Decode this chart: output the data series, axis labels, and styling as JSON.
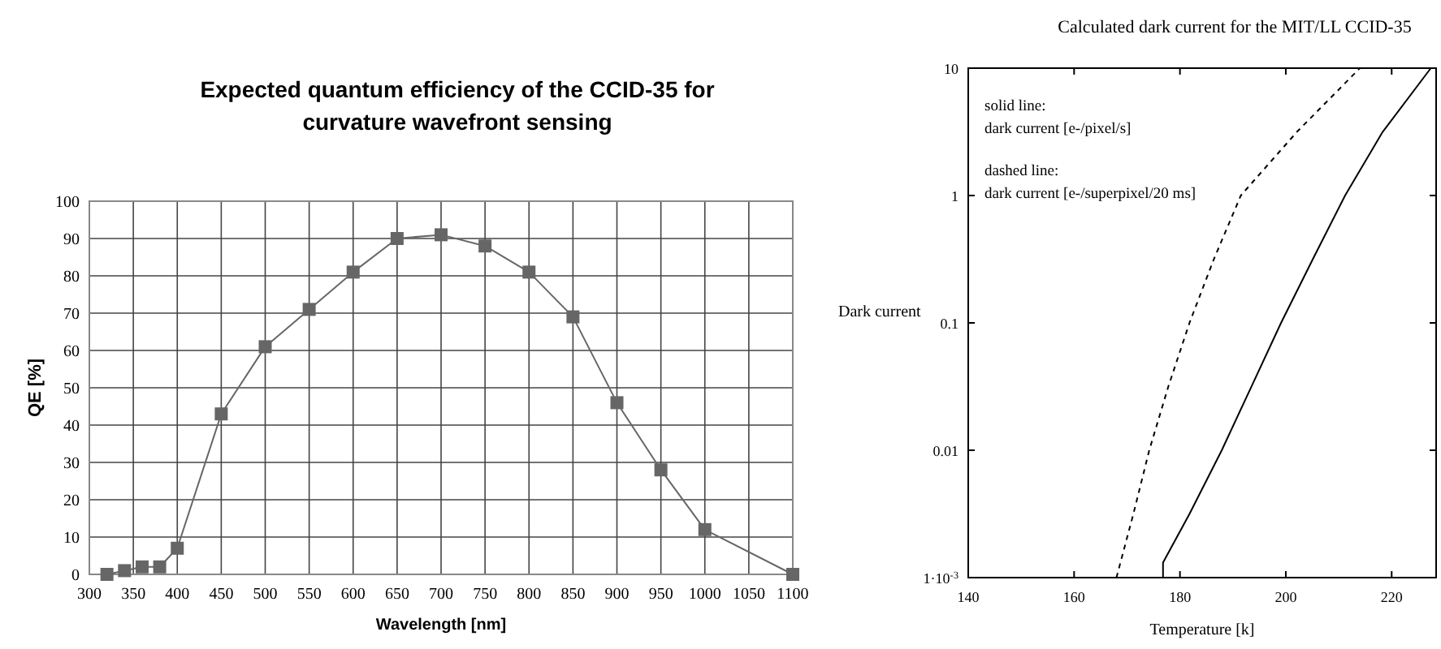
{
  "chart_data": [
    {
      "type": "line",
      "title": "Expected quantum efficiency of the CCID-35 for curvature wavefront sensing",
      "xlabel": "Wavelength [nm]",
      "ylabel": "QE [%]",
      "x": [
        320,
        340,
        360,
        380,
        400,
        450,
        500,
        550,
        600,
        650,
        700,
        750,
        800,
        850,
        900,
        950,
        1000,
        1100
      ],
      "series": [
        {
          "color": "#666666",
          "values": [
            0,
            1,
            2,
            2,
            7,
            43,
            61,
            71,
            81,
            90,
            91,
            88,
            81,
            69,
            46,
            28,
            12,
            0
          ]
        }
      ],
      "xlim": [
        300,
        1100
      ],
      "xticks": [
        300,
        350,
        400,
        450,
        500,
        550,
        600,
        650,
        700,
        750,
        800,
        850,
        900,
        950,
        1000,
        1050,
        1100
      ],
      "ylim": [
        0,
        100
      ],
      "yticks": [
        0,
        10,
        20,
        30,
        40,
        50,
        60,
        70,
        80,
        90,
        100
      ],
      "grid": true,
      "marker": "square"
    },
    {
      "type": "line",
      "title": "Calculated dark current for the MIT/LL CCID-35",
      "xlabel": "Temperature [k]",
      "ylabel": "Dark current",
      "series": [
        {
          "color": "#000000",
          "line_style": "solid",
          "x": [
            176.8,
            176.8,
            181.8,
            187.9,
            193.5,
            199.1,
            205.1,
            211.2,
            218.3,
            227.4
          ],
          "values": [
            0.001,
            0.00131,
            0.00316,
            0.01,
            0.0316,
            0.1,
            0.316,
            1,
            3.16,
            10
          ]
        },
        {
          "color": "#000000",
          "line_style": "dashed",
          "x": [
            168.0,
            171.2,
            174.2,
            177.8,
            181.8,
            186.4,
            191.5,
            202.1,
            214.0
          ],
          "values": [
            0.001,
            0.00316,
            0.01,
            0.0316,
            0.1,
            0.316,
            1,
            3.16,
            10
          ]
        }
      ],
      "xlim": [
        140,
        228.4
      ],
      "xticks": [
        140,
        160,
        180,
        200,
        220
      ],
      "ylim": [
        0.001,
        10
      ],
      "yticks": [
        {
          "value": 0.001,
          "label": "1·10$^{-3}$"
        },
        0.01,
        0.1,
        1,
        10
      ],
      "log": "y",
      "grid": false,
      "annotations": [
        "solid line:",
        "dark current [e-/pixel/s]",
        "dashed line:",
        "dark current  [e-/superpixel/20 ms]"
      ]
    }
  ]
}
